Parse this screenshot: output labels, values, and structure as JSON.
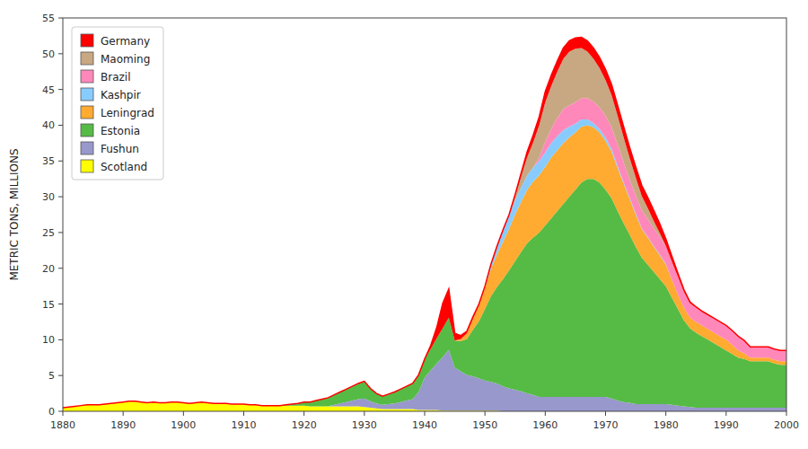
{
  "chart_data": {
    "type": "area",
    "stacked": true,
    "grid": false,
    "legend": "upper left",
    "y_label": "METRIC TONS, MILLIONS",
    "xlim": [
      1880,
      2000
    ],
    "ylim": [
      0,
      55
    ],
    "xticks": [
      1880,
      1890,
      1900,
      1910,
      1920,
      1930,
      1940,
      1950,
      1960,
      1970,
      1980,
      1990,
      2000
    ],
    "yticks": [
      0,
      5,
      10,
      15,
      20,
      25,
      30,
      35,
      40,
      45,
      50,
      55
    ],
    "x": [
      1880,
      1881,
      1882,
      1883,
      1884,
      1885,
      1886,
      1887,
      1888,
      1889,
      1890,
      1891,
      1892,
      1893,
      1894,
      1895,
      1896,
      1897,
      1898,
      1899,
      1900,
      1901,
      1902,
      1903,
      1904,
      1905,
      1906,
      1907,
      1908,
      1909,
      1910,
      1911,
      1912,
      1913,
      1914,
      1915,
      1916,
      1917,
      1918,
      1919,
      1920,
      1921,
      1922,
      1923,
      1924,
      1925,
      1926,
      1927,
      1928,
      1929,
      1930,
      1931,
      1932,
      1933,
      1934,
      1935,
      1936,
      1937,
      1938,
      1939,
      1940,
      1941,
      1942,
      1943,
      1944,
      1945,
      1946,
      1947,
      1948,
      1949,
      1950,
      1951,
      1952,
      1953,
      1954,
      1955,
      1956,
      1957,
      1958,
      1959,
      1960,
      1961,
      1962,
      1963,
      1964,
      1965,
      1966,
      1967,
      1968,
      1969,
      1970,
      1971,
      1972,
      1973,
      1974,
      1975,
      1976,
      1977,
      1978,
      1979,
      1980,
      1981,
      1982,
      1983,
      1984,
      1985,
      1986,
      1987,
      1988,
      1989,
      1990,
      1991,
      1992,
      1993,
      1994,
      1995,
      1996,
      1997,
      1998,
      1999,
      2000
    ],
    "series": [
      {
        "name": "Scotland",
        "color": "#ffff00",
        "values": [
          0.5,
          0.6,
          0.7,
          0.8,
          0.9,
          0.9,
          0.9,
          1.0,
          1.1,
          1.2,
          1.3,
          1.4,
          1.4,
          1.3,
          1.2,
          1.3,
          1.2,
          1.2,
          1.3,
          1.3,
          1.2,
          1.1,
          1.2,
          1.3,
          1.2,
          1.1,
          1.1,
          1.1,
          1.0,
          1.0,
          1.0,
          0.9,
          0.9,
          0.8,
          0.8,
          0.8,
          0.8,
          0.8,
          0.8,
          0.8,
          0.8,
          0.7,
          0.7,
          0.7,
          0.7,
          0.7,
          0.7,
          0.7,
          0.7,
          0.7,
          0.6,
          0.5,
          0.4,
          0.3,
          0.3,
          0.3,
          0.3,
          0.3,
          0.3,
          0.2,
          0.2,
          0.2,
          0.2,
          0.1,
          0.1,
          0.1,
          0.1,
          0.1,
          0.1,
          0.1,
          0.1,
          0.1,
          0.1,
          0.0,
          0.0,
          0.0,
          0.0,
          0.0,
          0.0,
          0.0,
          0.0,
          0.0,
          0.0,
          0.0,
          0.0,
          0.0,
          0.0,
          0.0,
          0.0,
          0.0,
          0.0,
          0.0,
          0.0,
          0.0,
          0.0,
          0.0,
          0.0,
          0.0,
          0.0,
          0.0,
          0.0,
          0.0,
          0.0,
          0.0,
          0.0,
          0.0,
          0.0,
          0.0,
          0.0,
          0.0,
          0.0,
          0.0,
          0.0,
          0.0,
          0.0,
          0.0,
          0.0,
          0.0,
          0.0,
          0.0,
          0.0
        ]
      },
      {
        "name": "Fushun",
        "color": "#9898cc",
        "values": [
          0.0,
          0.0,
          0.0,
          0.0,
          0.0,
          0.0,
          0.0,
          0.0,
          0.0,
          0.0,
          0.0,
          0.0,
          0.0,
          0.0,
          0.0,
          0.0,
          0.0,
          0.0,
          0.0,
          0.0,
          0.0,
          0.0,
          0.0,
          0.0,
          0.0,
          0.0,
          0.0,
          0.0,
          0.0,
          0.0,
          0.0,
          0.0,
          0.0,
          0.0,
          0.0,
          0.0,
          0.0,
          0.0,
          0.0,
          0.0,
          0.0,
          0.0,
          0.0,
          0.0,
          0.0,
          0.2,
          0.4,
          0.6,
          0.8,
          1.0,
          1.2,
          0.9,
          0.7,
          0.6,
          0.7,
          0.8,
          1.0,
          1.2,
          1.4,
          2.5,
          4.5,
          5.5,
          6.5,
          7.5,
          8.5,
          6.0,
          5.5,
          5.0,
          4.8,
          4.5,
          4.2,
          4.0,
          3.8,
          3.5,
          3.2,
          3.0,
          2.8,
          2.5,
          2.3,
          2.0,
          2.0,
          2.0,
          2.0,
          2.0,
          2.0,
          2.0,
          2.0,
          2.0,
          2.0,
          2.0,
          2.0,
          1.8,
          1.5,
          1.3,
          1.2,
          1.0,
          1.0,
          1.0,
          1.0,
          1.0,
          1.0,
          0.9,
          0.8,
          0.7,
          0.6,
          0.5,
          0.5,
          0.5,
          0.5,
          0.5,
          0.5,
          0.5,
          0.5,
          0.5,
          0.5,
          0.5,
          0.5,
          0.5,
          0.5,
          0.5,
          0.5
        ]
      },
      {
        "name": "Estonia",
        "color": "#55bb44",
        "values": [
          0.0,
          0.0,
          0.0,
          0.0,
          0.0,
          0.0,
          0.0,
          0.0,
          0.0,
          0.0,
          0.0,
          0.0,
          0.0,
          0.0,
          0.0,
          0.0,
          0.0,
          0.0,
          0.0,
          0.0,
          0.0,
          0.0,
          0.0,
          0.0,
          0.0,
          0.0,
          0.0,
          0.0,
          0.0,
          0.0,
          0.0,
          0.0,
          0.0,
          0.0,
          0.0,
          0.0,
          0.0,
          0.1,
          0.2,
          0.3,
          0.5,
          0.6,
          0.8,
          1.0,
          1.2,
          1.4,
          1.6,
          1.8,
          2.0,
          2.2,
          2.4,
          1.8,
          1.4,
          1.2,
          1.4,
          1.6,
          1.8,
          2.0,
          2.2,
          2.4,
          2.6,
          3.0,
          3.5,
          4.0,
          4.5,
          3.8,
          4.2,
          5.0,
          6.5,
          8.0,
          10.0,
          12.0,
          13.5,
          15.0,
          16.5,
          18.0,
          19.5,
          21.0,
          22.0,
          23.0,
          24.0,
          25.0,
          26.0,
          27.0,
          28.0,
          29.0,
          30.0,
          30.5,
          30.5,
          30.0,
          29.0,
          28.0,
          26.5,
          25.0,
          23.5,
          22.0,
          20.5,
          19.5,
          18.5,
          17.5,
          16.5,
          15.0,
          13.5,
          12.0,
          11.0,
          10.5,
          10.0,
          9.5,
          9.0,
          8.5,
          8.0,
          7.5,
          7.0,
          6.8,
          6.5,
          6.5,
          6.5,
          6.5,
          6.2,
          6.0,
          6.0
        ]
      },
      {
        "name": "Leningrad",
        "color": "#ffaa30",
        "values": [
          0.0,
          0.0,
          0.0,
          0.0,
          0.0,
          0.0,
          0.0,
          0.0,
          0.0,
          0.0,
          0.0,
          0.0,
          0.0,
          0.0,
          0.0,
          0.0,
          0.0,
          0.0,
          0.0,
          0.0,
          0.0,
          0.0,
          0.0,
          0.0,
          0.0,
          0.0,
          0.0,
          0.0,
          0.0,
          0.0,
          0.0,
          0.0,
          0.0,
          0.0,
          0.0,
          0.0,
          0.0,
          0.0,
          0.0,
          0.0,
          0.0,
          0.0,
          0.0,
          0.0,
          0.0,
          0.0,
          0.0,
          0.0,
          0.0,
          0.0,
          0.0,
          0.0,
          0.0,
          0.0,
          0.0,
          0.0,
          0.0,
          0.0,
          0.0,
          0.0,
          0.0,
          0.0,
          0.0,
          0.0,
          0.0,
          0.0,
          0.3,
          0.8,
          1.5,
          2.2,
          3.0,
          3.8,
          4.5,
          5.2,
          5.8,
          6.5,
          7.0,
          7.5,
          7.8,
          8.0,
          8.2,
          8.5,
          8.5,
          8.5,
          8.3,
          8.0,
          7.8,
          7.5,
          7.2,
          7.0,
          6.8,
          6.5,
          6.0,
          5.5,
          5.0,
          4.5,
          4.0,
          3.8,
          3.5,
          3.3,
          3.0,
          2.5,
          2.0,
          1.8,
          1.5,
          1.5,
          1.5,
          1.5,
          1.5,
          1.5,
          1.5,
          1.3,
          1.0,
          0.8,
          0.5,
          0.5,
          0.5,
          0.5,
          0.5,
          0.5,
          0.5
        ]
      },
      {
        "name": "Kashpir",
        "color": "#88ccff",
        "values": [
          0.0,
          0.0,
          0.0,
          0.0,
          0.0,
          0.0,
          0.0,
          0.0,
          0.0,
          0.0,
          0.0,
          0.0,
          0.0,
          0.0,
          0.0,
          0.0,
          0.0,
          0.0,
          0.0,
          0.0,
          0.0,
          0.0,
          0.0,
          0.0,
          0.0,
          0.0,
          0.0,
          0.0,
          0.0,
          0.0,
          0.0,
          0.0,
          0.0,
          0.0,
          0.0,
          0.0,
          0.0,
          0.0,
          0.0,
          0.0,
          0.0,
          0.0,
          0.0,
          0.0,
          0.0,
          0.0,
          0.0,
          0.0,
          0.0,
          0.0,
          0.0,
          0.0,
          0.0,
          0.0,
          0.0,
          0.0,
          0.0,
          0.0,
          0.0,
          0.0,
          0.0,
          0.0,
          0.0,
          0.0,
          0.0,
          0.0,
          0.0,
          0.0,
          0.0,
          0.0,
          0.0,
          0.5,
          1.0,
          1.5,
          1.8,
          2.0,
          2.0,
          2.0,
          2.0,
          2.0,
          2.0,
          2.0,
          2.0,
          1.8,
          1.5,
          1.2,
          1.0,
          0.8,
          0.6,
          0.5,
          0.5,
          0.4,
          0.3,
          0.2,
          0.2,
          0.2,
          0.1,
          0.1,
          0.1,
          0.1,
          0.1,
          0.0,
          0.0,
          0.0,
          0.0,
          0.0,
          0.0,
          0.0,
          0.0,
          0.0,
          0.0,
          0.0,
          0.0,
          0.0,
          0.0,
          0.0,
          0.0,
          0.0,
          0.0,
          0.0,
          0.0
        ]
      },
      {
        "name": "Brazil",
        "color": "#ff88bb",
        "values": [
          0.0,
          0.0,
          0.0,
          0.0,
          0.0,
          0.0,
          0.0,
          0.0,
          0.0,
          0.0,
          0.0,
          0.0,
          0.0,
          0.0,
          0.0,
          0.0,
          0.0,
          0.0,
          0.0,
          0.0,
          0.0,
          0.0,
          0.0,
          0.0,
          0.0,
          0.0,
          0.0,
          0.0,
          0.0,
          0.0,
          0.0,
          0.0,
          0.0,
          0.0,
          0.0,
          0.0,
          0.0,
          0.0,
          0.0,
          0.0,
          0.0,
          0.0,
          0.0,
          0.0,
          0.0,
          0.0,
          0.0,
          0.0,
          0.0,
          0.0,
          0.0,
          0.0,
          0.0,
          0.0,
          0.0,
          0.0,
          0.0,
          0.0,
          0.0,
          0.0,
          0.0,
          0.0,
          0.0,
          0.0,
          0.0,
          0.0,
          0.0,
          0.0,
          0.0,
          0.0,
          0.0,
          0.0,
          0.0,
          0.0,
          0.0,
          0.0,
          0.0,
          0.0,
          0.0,
          0.5,
          1.5,
          2.0,
          2.5,
          3.0,
          3.0,
          3.0,
          3.0,
          3.0,
          3.0,
          3.0,
          3.0,
          3.0,
          3.0,
          2.8,
          2.5,
          2.5,
          2.5,
          2.5,
          2.5,
          2.5,
          2.5,
          2.5,
          2.5,
          2.2,
          2.0,
          2.0,
          2.0,
          2.0,
          2.0,
          2.0,
          2.0,
          2.0,
          2.0,
          1.8,
          1.5,
          1.5,
          1.5,
          1.5,
          1.5,
          1.5,
          1.5
        ]
      },
      {
        "name": "Maoming",
        "color": "#c8a882",
        "values": [
          0.0,
          0.0,
          0.0,
          0.0,
          0.0,
          0.0,
          0.0,
          0.0,
          0.0,
          0.0,
          0.0,
          0.0,
          0.0,
          0.0,
          0.0,
          0.0,
          0.0,
          0.0,
          0.0,
          0.0,
          0.0,
          0.0,
          0.0,
          0.0,
          0.0,
          0.0,
          0.0,
          0.0,
          0.0,
          0.0,
          0.0,
          0.0,
          0.0,
          0.0,
          0.0,
          0.0,
          0.0,
          0.0,
          0.0,
          0.0,
          0.0,
          0.0,
          0.0,
          0.0,
          0.0,
          0.0,
          0.0,
          0.0,
          0.0,
          0.0,
          0.0,
          0.0,
          0.0,
          0.0,
          0.0,
          0.0,
          0.0,
          0.0,
          0.0,
          0.0,
          0.0,
          0.0,
          0.0,
          0.0,
          0.0,
          0.0,
          0.0,
          0.0,
          0.0,
          0.0,
          0.0,
          0.0,
          0.0,
          0.0,
          0.0,
          0.5,
          1.5,
          2.5,
          3.5,
          4.5,
          5.5,
          6.0,
          6.5,
          7.0,
          7.5,
          7.5,
          7.0,
          6.5,
          6.0,
          5.5,
          5.0,
          4.5,
          4.0,
          3.5,
          3.0,
          2.5,
          2.0,
          1.5,
          1.0,
          0.5,
          0.0,
          0.0,
          0.0,
          0.0,
          0.0,
          0.0,
          0.0,
          0.0,
          0.0,
          0.0,
          0.0,
          0.0,
          0.0,
          0.0,
          0.0,
          0.0,
          0.0,
          0.0,
          0.0,
          0.0,
          0.0
        ]
      },
      {
        "name": "Germany",
        "color": "#ff0000",
        "values": [
          0.0,
          0.0,
          0.0,
          0.0,
          0.0,
          0.0,
          0.0,
          0.0,
          0.0,
          0.0,
          0.0,
          0.0,
          0.0,
          0.0,
          0.0,
          0.0,
          0.0,
          0.0,
          0.0,
          0.0,
          0.0,
          0.0,
          0.0,
          0.0,
          0.0,
          0.0,
          0.0,
          0.0,
          0.0,
          0.0,
          0.0,
          0.0,
          0.0,
          0.0,
          0.0,
          0.0,
          0.0,
          0.0,
          0.0,
          0.0,
          0.0,
          0.0,
          0.0,
          0.0,
          0.0,
          0.0,
          0.0,
          0.0,
          0.0,
          0.0,
          0.0,
          0.0,
          0.0,
          0.0,
          0.0,
          0.0,
          0.0,
          0.0,
          0.0,
          0.0,
          0.0,
          0.5,
          1.5,
          3.5,
          4.0,
          1.0,
          0.5,
          0.3,
          0.3,
          0.2,
          0.2,
          0.2,
          0.2,
          0.2,
          0.2,
          0.3,
          0.5,
          0.8,
          1.0,
          1.2,
          1.5,
          1.5,
          1.5,
          1.5,
          1.5,
          1.5,
          1.5,
          1.5,
          1.5,
          1.5,
          1.5,
          1.5,
          1.5,
          1.5,
          1.5,
          1.5,
          1.5,
          1.5,
          1.5,
          1.3,
          1.0,
          0.8,
          0.5,
          0.3,
          0.2,
          0.1,
          0.0,
          0.0,
          0.0,
          0.0,
          0.0,
          0.0,
          0.0,
          0.0,
          0.0,
          0.0,
          0.0,
          0.0,
          0.0,
          0.0,
          0.0
        ]
      }
    ]
  }
}
